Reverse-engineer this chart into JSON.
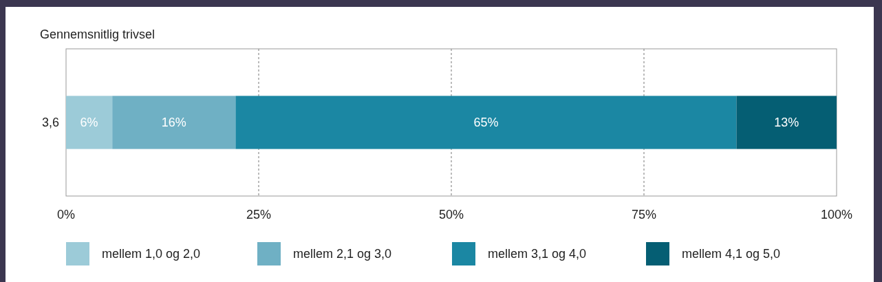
{
  "chart_data": {
    "type": "bar",
    "orientation": "horizontal",
    "stacked": true,
    "title": "Gennemsnitlig trivsel",
    "categories": [
      "3,6"
    ],
    "series": [
      {
        "name": "mellem 1,0 og 2,0",
        "color": "#9ccbd8",
        "values": [
          6
        ],
        "value_labels": [
          "6%"
        ]
      },
      {
        "name": "mellem 2,1 og 3,0",
        "color": "#6fb0c4",
        "values": [
          16
        ],
        "value_labels": [
          "16%"
        ]
      },
      {
        "name": "mellem 3,1 og 4,0",
        "color": "#1b87a3",
        "values": [
          65
        ],
        "value_labels": [
          "65%"
        ]
      },
      {
        "name": "mellem 4,1 og 5,0",
        "color": "#055e73",
        "values": [
          13
        ],
        "value_labels": [
          "13%"
        ]
      }
    ],
    "xlim": [
      0,
      100
    ],
    "xticks": [
      {
        "value": 0,
        "label": "0%"
      },
      {
        "value": 25,
        "label": "25%"
      },
      {
        "value": 50,
        "label": "50%"
      },
      {
        "value": 75,
        "label": "75%"
      },
      {
        "value": 100,
        "label": "100%"
      }
    ],
    "grid": "x",
    "legend": "bottom"
  }
}
